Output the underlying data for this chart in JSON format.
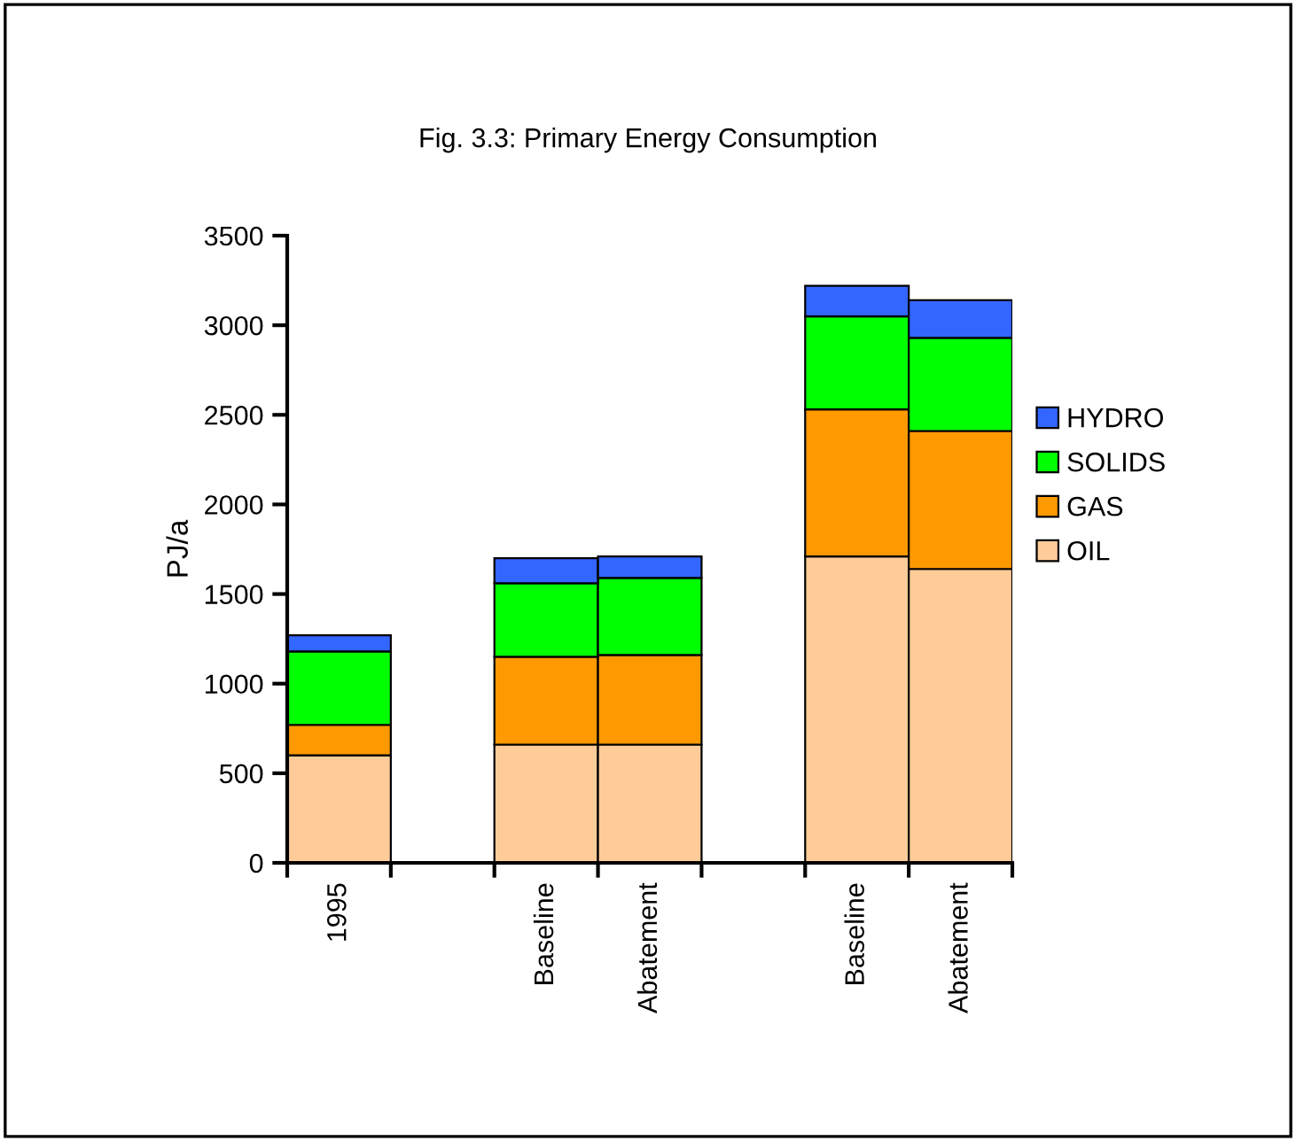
{
  "chart_data": {
    "type": "bar",
    "stacked": true,
    "title": "Fig. 3.3: Primary Energy Consumption",
    "ylabel": "PJ/a",
    "categories": [
      "1995",
      null,
      "Baseline",
      "Abatement",
      null,
      "Baseline",
      "Abatement"
    ],
    "series": [
      {
        "name": "OIL",
        "color": "#ffcc99",
        "values": [
          600,
          null,
          660,
          660,
          null,
          1710,
          1640
        ]
      },
      {
        "name": "GAS",
        "color": "#ff9900",
        "values": [
          170,
          null,
          490,
          500,
          null,
          820,
          770
        ]
      },
      {
        "name": "SOLIDS",
        "color": "#00ff00",
        "values": [
          410,
          null,
          410,
          430,
          null,
          520,
          520
        ]
      },
      {
        "name": "HYDRO",
        "color": "#3366ff",
        "values": [
          90,
          null,
          140,
          120,
          null,
          170,
          210
        ]
      }
    ],
    "ylim": [
      0,
      3500
    ],
    "yticks": [
      0,
      500,
      1000,
      1500,
      2000,
      2500,
      3000,
      3500
    ],
    "grid": false,
    "legend": "right"
  }
}
